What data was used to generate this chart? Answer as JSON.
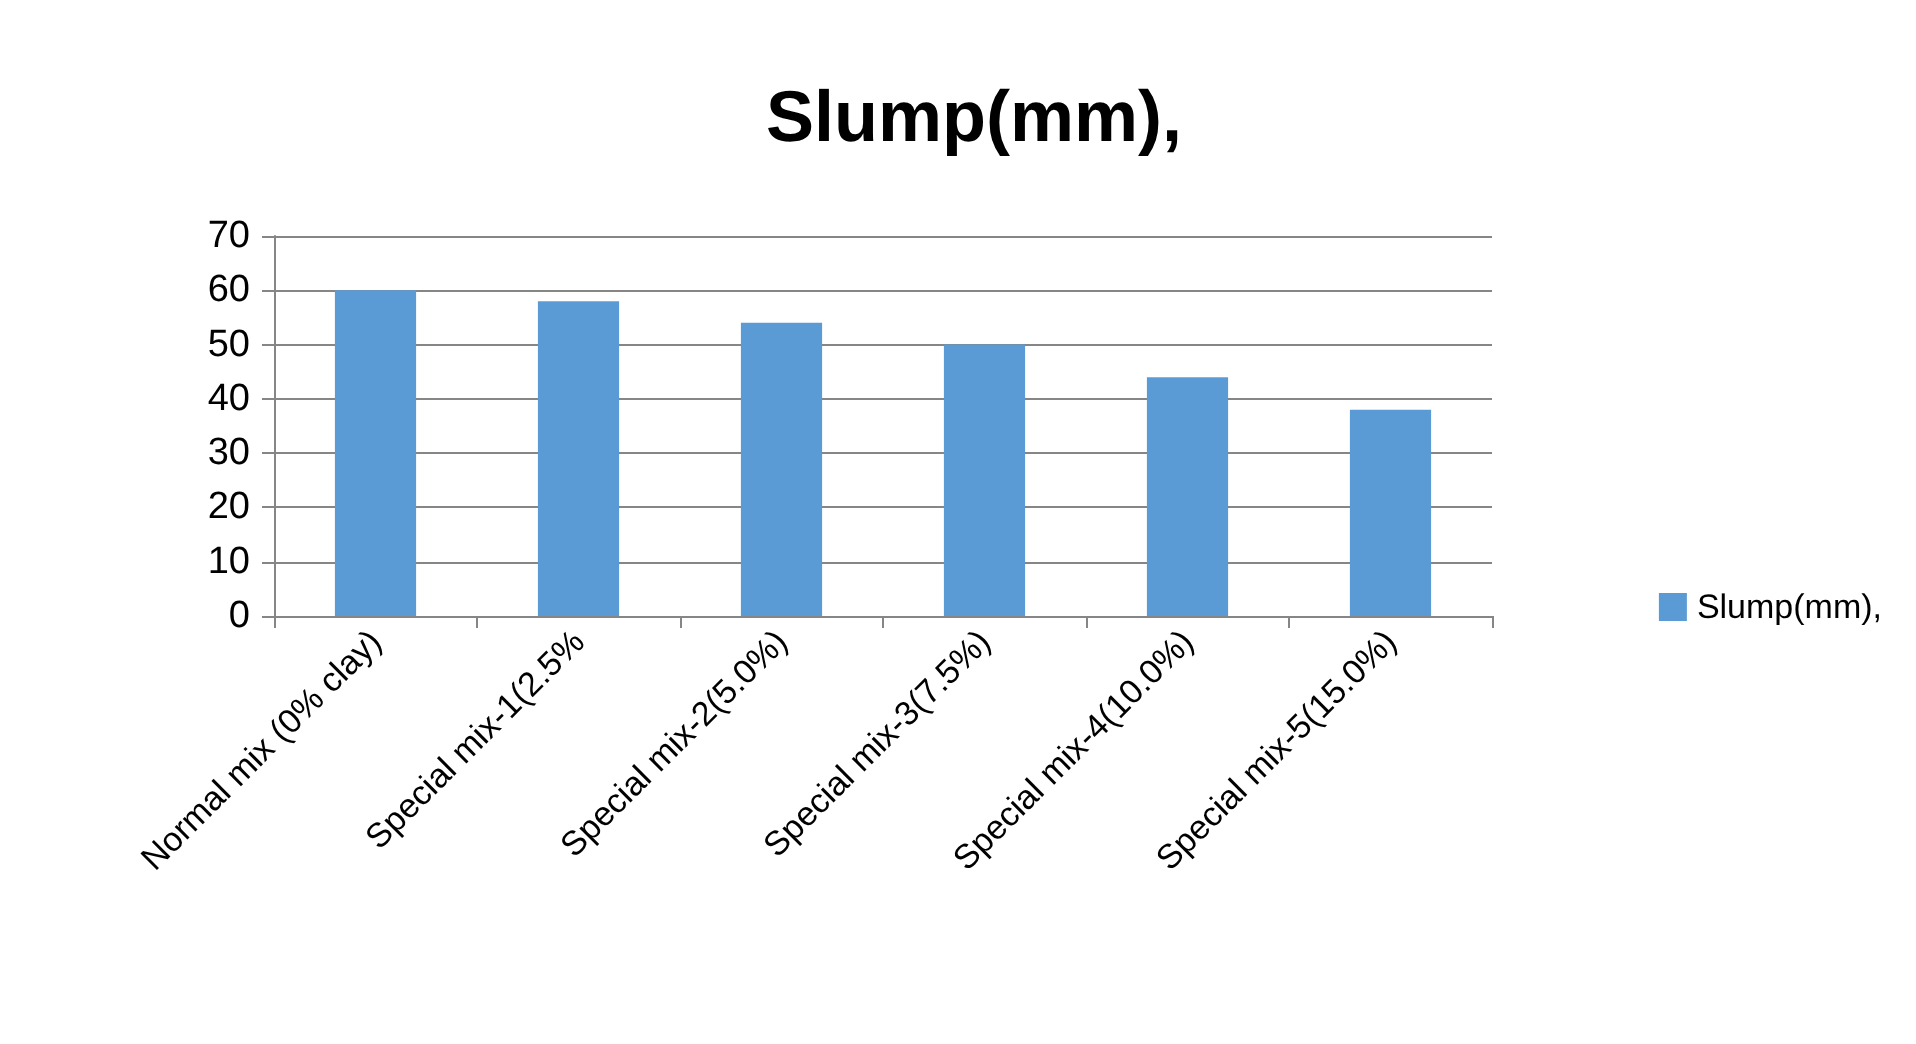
{
  "chart_data": {
    "type": "bar",
    "title": "Slump(mm),",
    "categories": [
      "Normal mix (0% clay)",
      "Special mix-1(2.5%",
      "Special mix-2(5.0%)",
      "Special mix-3(7.5%)",
      "Special mix-4(10.0%)",
      "Special mix-5(15.0%)"
    ],
    "series": [
      {
        "name": "Slump(mm),",
        "color": "#5b9bd5",
        "values": [
          60,
          58,
          54,
          50,
          44,
          38
        ]
      }
    ],
    "ylim": [
      0,
      70
    ],
    "yticks": [
      0,
      10,
      20,
      30,
      40,
      50,
      60,
      70
    ],
    "grid": "y",
    "legend": "right"
  }
}
